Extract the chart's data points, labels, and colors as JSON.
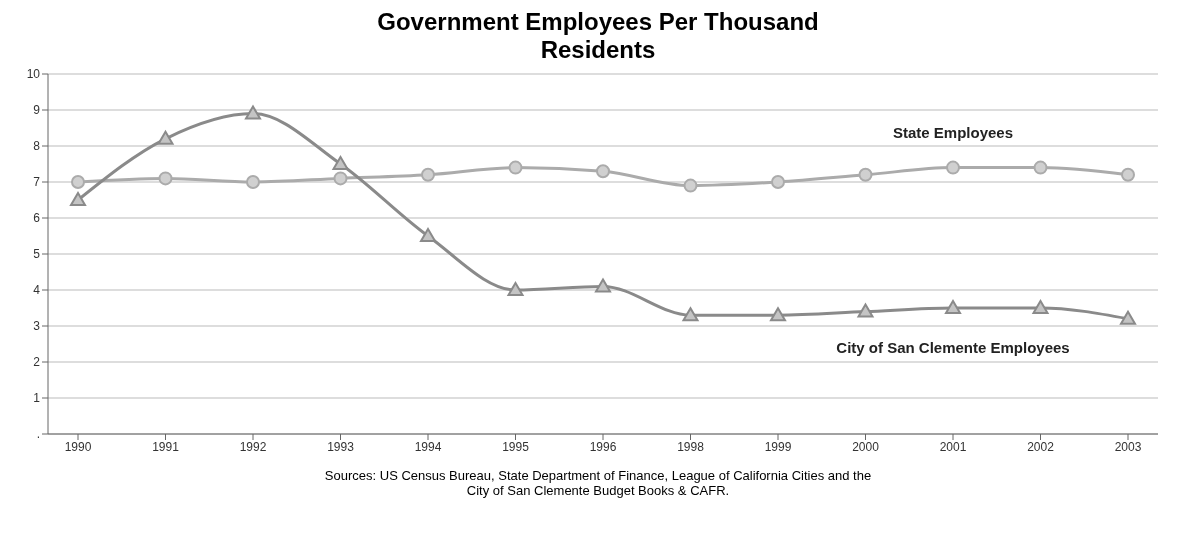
{
  "chart_data": {
    "type": "line",
    "title": "Government Employees Per Thousand Residents",
    "categories": [
      "1990",
      "1991",
      "1992",
      "1993",
      "1994",
      "1995",
      "1996",
      "1998",
      "1999",
      "2000",
      "2001",
      "2002",
      "2003"
    ],
    "series": [
      {
        "name": "State Employees",
        "color": "#ababab",
        "marker": "circle",
        "values": [
          7.0,
          7.1,
          7.0,
          7.1,
          7.2,
          7.4,
          7.3,
          6.9,
          7.0,
          7.2,
          7.4,
          7.4,
          7.2
        ]
      },
      {
        "name": "City of San Clemente Employees",
        "color": "#8a8a8a",
        "marker": "triangle",
        "values": [
          6.5,
          8.2,
          8.9,
          7.5,
          5.5,
          4.0,
          4.1,
          3.3,
          3.3,
          3.4,
          3.5,
          3.5,
          3.2
        ]
      }
    ],
    "ylim": [
      0,
      10
    ],
    "yticks": [
      {
        "value": 0,
        "label": "."
      },
      1,
      2,
      3,
      4,
      5,
      6,
      7,
      8,
      9,
      10
    ],
    "grid": "y",
    "annotations": [
      "Sources: US Census Bureau, State Department of Finance, League of California Cities and the City of San Clemente Budget Books & CAFR."
    ]
  }
}
